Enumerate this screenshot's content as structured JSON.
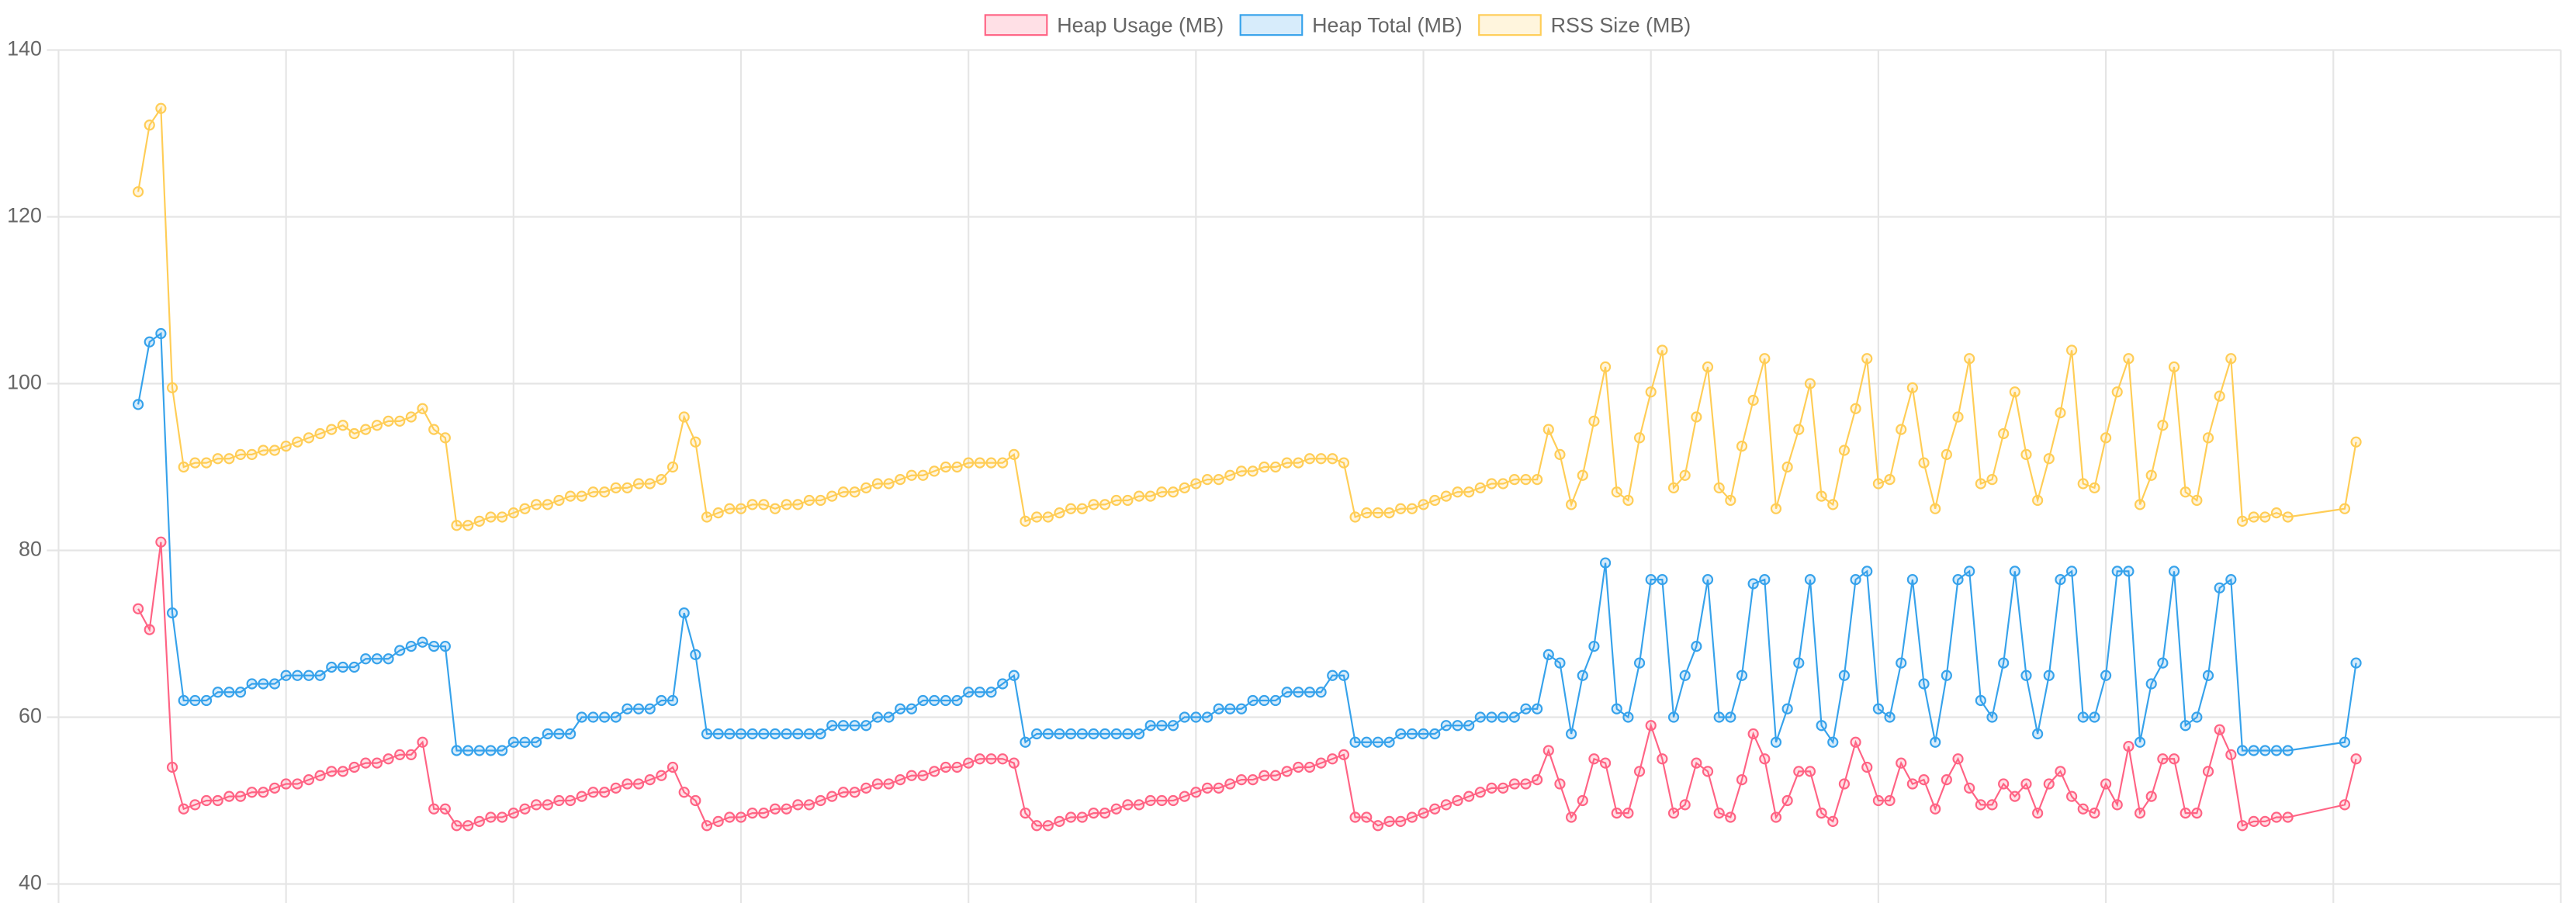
{
  "chart_data": {
    "type": "line",
    "x": [
      0,
      1,
      2,
      3,
      4,
      5,
      6,
      7,
      8,
      9,
      10,
      11,
      12,
      13,
      14,
      15,
      16,
      17,
      18,
      19,
      20,
      21,
      22,
      23,
      24,
      25,
      26,
      27,
      28,
      29,
      30,
      31,
      32,
      33,
      34,
      35,
      36,
      37,
      38,
      39,
      40,
      41,
      42,
      43,
      44,
      45,
      46,
      47,
      48,
      49,
      50,
      51,
      52,
      53,
      54,
      55,
      56,
      57,
      58,
      59,
      60,
      61,
      62,
      63,
      64,
      65,
      66,
      67,
      68,
      69,
      70,
      71,
      72,
      73,
      74,
      75,
      76,
      77,
      78,
      79,
      80,
      81,
      82,
      83,
      84,
      85,
      86,
      87,
      88,
      89,
      90,
      91,
      92,
      93,
      94,
      95,
      96,
      97,
      98,
      99,
      100,
      101,
      102,
      103,
      104,
      105,
      106,
      107,
      108,
      109,
      110,
      111,
      112,
      113,
      114,
      115,
      116,
      117,
      118,
      119,
      120,
      121,
      122,
      123,
      124,
      125,
      126,
      127,
      128,
      129,
      130,
      131,
      132,
      133,
      134,
      135,
      136,
      137,
      138,
      139,
      140,
      141,
      142,
      143,
      144,
      145,
      146,
      147,
      148,
      149,
      150,
      151,
      152,
      153,
      154,
      155,
      156,
      157,
      158,
      159,
      160,
      161,
      162,
      163,
      164,
      165,
      166,
      167,
      168,
      169,
      170,
      171,
      172,
      173,
      174,
      175,
      176,
      177,
      178,
      179,
      180,
      181,
      182,
      183,
      184,
      185,
      186,
      187,
      188,
      189,
      194,
      195
    ],
    "xlim": [
      -7,
      213
    ],
    "ylim": [
      40,
      140
    ],
    "yticks": [
      40,
      60,
      80,
      100,
      120,
      140
    ],
    "grid": true,
    "legend": "top",
    "series": [
      {
        "name": "Heap Usage (MB)",
        "color": "#ff6384",
        "values": [
          73,
          70.5,
          81,
          54,
          49,
          49.5,
          50,
          50,
          50.5,
          50.5,
          51,
          51,
          51.5,
          52,
          52,
          52.5,
          53,
          53.5,
          53.5,
          54,
          54.5,
          54.5,
          55,
          55.5,
          55.5,
          57,
          49,
          49,
          47,
          47,
          47.5,
          48,
          48,
          48.5,
          49,
          49.5,
          49.5,
          50,
          50,
          50.5,
          51,
          51,
          51.5,
          52,
          52,
          52.5,
          53,
          54,
          51,
          50,
          47,
          47.5,
          48,
          48,
          48.5,
          48.5,
          49,
          49,
          49.5,
          49.5,
          50,
          50.5,
          51,
          51,
          51.5,
          52,
          52,
          52.5,
          53,
          53,
          53.5,
          54,
          54,
          54.5,
          55,
          55,
          55,
          54.5,
          48.5,
          47,
          47,
          47.5,
          48,
          48,
          48.5,
          48.5,
          49,
          49.5,
          49.5,
          50,
          50,
          50,
          50.5,
          51,
          51.5,
          51.5,
          52,
          52.5,
          52.5,
          53,
          53,
          53.5,
          54,
          54,
          54.5,
          55,
          55.5,
          48,
          48,
          47,
          47.5,
          47.5,
          48,
          48.5,
          49,
          49.5,
          50,
          50.5,
          51,
          51.5,
          51.5,
          52,
          52,
          52.5,
          56,
          52,
          48,
          50,
          55,
          54.5,
          48.5,
          48.5,
          53.5,
          59,
          55,
          48.5,
          49.5,
          54.5,
          53.5,
          48.5,
          48,
          52.5,
          58,
          55,
          48,
          50,
          53.5,
          53.5,
          48.5,
          47.5,
          52,
          57,
          54,
          50,
          50,
          54.5,
          52,
          52.5,
          49,
          52.5,
          55,
          51.5,
          49.5,
          49.5,
          52,
          50.5,
          52,
          48.5,
          52,
          53.5,
          50.5,
          49,
          48.5,
          52,
          49.5,
          56.5,
          48.5,
          50.5,
          55,
          55,
          48.5,
          48.5,
          53.5,
          58.5,
          55.5,
          47,
          47.5,
          47.5,
          48,
          48,
          49.5,
          55
        ]
      },
      {
        "name": "Heap Total (MB)",
        "color": "#36a2eb",
        "values": [
          97.5,
          105,
          106,
          72.5,
          62,
          62,
          62,
          63,
          63,
          63,
          64,
          64,
          64,
          65,
          65,
          65,
          65,
          66,
          66,
          66,
          67,
          67,
          67,
          68,
          68.5,
          69,
          68.5,
          68.5,
          56,
          56,
          56,
          56,
          56,
          57,
          57,
          57,
          58,
          58,
          58,
          60,
          60,
          60,
          60,
          61,
          61,
          61,
          62,
          62,
          72.5,
          67.5,
          58,
          58,
          58,
          58,
          58,
          58,
          58,
          58,
          58,
          58,
          58,
          59,
          59,
          59,
          59,
          60,
          60,
          61,
          61,
          62,
          62,
          62,
          62,
          63,
          63,
          63,
          64,
          65,
          57,
          58,
          58,
          58,
          58,
          58,
          58,
          58,
          58,
          58,
          58,
          59,
          59,
          59,
          60,
          60,
          60,
          61,
          61,
          61,
          62,
          62,
          62,
          63,
          63,
          63,
          63,
          65,
          65,
          57,
          57,
          57,
          57,
          58,
          58,
          58,
          58,
          59,
          59,
          59,
          60,
          60,
          60,
          60,
          61,
          61,
          67.5,
          66.5,
          58,
          65,
          68.5,
          78.5,
          61,
          60,
          66.5,
          76.5,
          76.5,
          60,
          65,
          68.5,
          76.5,
          60,
          60,
          65,
          76,
          76.5,
          57,
          61,
          66.5,
          76.5,
          59,
          57,
          65,
          76.5,
          77.5,
          61,
          60,
          66.5,
          76.5,
          64,
          57,
          65,
          76.5,
          77.5,
          62,
          60,
          66.5,
          77.5,
          65,
          58,
          65,
          76.5,
          77.5,
          60,
          60,
          65,
          77.5,
          77.5,
          57,
          64,
          66.5,
          77.5,
          59,
          60,
          65,
          75.5,
          76.5,
          56,
          56,
          56,
          56,
          56,
          57,
          66.5
        ]
      },
      {
        "name": "RSS Size (MB)",
        "color": "#ffcd56",
        "values": [
          123,
          131,
          133,
          99.5,
          90,
          90.5,
          90.5,
          91,
          91,
          91.5,
          91.5,
          92,
          92,
          92.5,
          93,
          93.5,
          94,
          94.5,
          95,
          94,
          94.5,
          95,
          95.5,
          95.5,
          96,
          97,
          94.5,
          93.5,
          83,
          83,
          83.5,
          84,
          84,
          84.5,
          85,
          85.5,
          85.5,
          86,
          86.5,
          86.5,
          87,
          87,
          87.5,
          87.5,
          88,
          88,
          88.5,
          90,
          96,
          93,
          84,
          84.5,
          85,
          85,
          85.5,
          85.5,
          85,
          85.5,
          85.5,
          86,
          86,
          86.5,
          87,
          87,
          87.5,
          88,
          88,
          88.5,
          89,
          89,
          89.5,
          90,
          90,
          90.5,
          90.5,
          90.5,
          90.5,
          91.5,
          83.5,
          84,
          84,
          84.5,
          85,
          85,
          85.5,
          85.5,
          86,
          86,
          86.5,
          86.5,
          87,
          87,
          87.5,
          88,
          88.5,
          88.5,
          89,
          89.5,
          89.5,
          90,
          90,
          90.5,
          90.5,
          91,
          91,
          91,
          90.5,
          84,
          84.5,
          84.5,
          84.5,
          85,
          85,
          85.5,
          86,
          86.5,
          87,
          87,
          87.5,
          88,
          88,
          88.5,
          88.5,
          88.5,
          94.5,
          91.5,
          85.5,
          89,
          95.5,
          102,
          87,
          86,
          93.5,
          99,
          104,
          87.5,
          89,
          96,
          102,
          87.5,
          86,
          92.5,
          98,
          103,
          85,
          90,
          94.5,
          100,
          86.5,
          85.5,
          92,
          97,
          103,
          88,
          88.5,
          94.5,
          99.5,
          90.5,
          85,
          91.5,
          96,
          103,
          88,
          88.5,
          94,
          99,
          91.5,
          86,
          91,
          96.5,
          104,
          88,
          87.5,
          93.5,
          99,
          103,
          85.5,
          89,
          95,
          102,
          87,
          86,
          93.5,
          98.5,
          103,
          83.5,
          84,
          84,
          84.5,
          84,
          85,
          93
        ]
      }
    ]
  }
}
